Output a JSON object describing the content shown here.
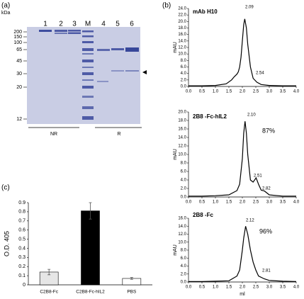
{
  "panel_a": {
    "label": "(a)",
    "unit": "kDa",
    "markers": [
      "200",
      "150",
      "100",
      "65",
      "45",
      "30",
      "20",
      "12"
    ],
    "lanes": [
      "1",
      "2",
      "3",
      "M",
      "4",
      "5",
      "6"
    ],
    "groups": [
      "NR",
      "R"
    ]
  },
  "chart_data": [
    {
      "type": "line",
      "panel": "(b)",
      "title": "mAb H10",
      "ylabel": "mAU",
      "color": "#000000",
      "x": [
        0,
        0.5,
        1.0,
        1.4,
        1.6,
        1.7,
        1.8,
        1.85,
        1.9,
        1.95,
        2.0,
        2.05,
        2.09,
        2.15,
        2.2,
        2.3,
        2.4,
        2.54,
        2.7,
        3.0,
        3.5,
        4.0
      ],
      "values": [
        0.2,
        0.2,
        0.3,
        0.8,
        2,
        3,
        3.8,
        4.5,
        6,
        9,
        14,
        19,
        20.8,
        18,
        13,
        6,
        2.5,
        1.3,
        0.6,
        0.3,
        0.2,
        0.2
      ],
      "xlim": [
        0,
        4
      ],
      "ylim": [
        0,
        24
      ],
      "xticks": [
        {
          "value": 0,
          "label": "0.0"
        },
        {
          "value": 0.5,
          "label": "0.5"
        },
        {
          "value": 1,
          "label": "1.0"
        },
        {
          "value": 1.5,
          "label": "1.5"
        },
        {
          "value": 2,
          "label": "2.0"
        },
        {
          "value": 2.5,
          "label": "2.5"
        },
        {
          "value": 3,
          "label": "3.0"
        },
        {
          "value": 3.5,
          "label": "3.5"
        },
        {
          "value": 4,
          "label": "4.0"
        }
      ],
      "yticks": [
        {
          "value": 0,
          "label": "0.0"
        },
        {
          "value": 2,
          "label": "2.0"
        },
        {
          "value": 4,
          "label": "4.0"
        },
        {
          "value": 6,
          "label": "6.0"
        },
        {
          "value": 8,
          "label": "8.0"
        },
        {
          "value": 10,
          "label": "10.0"
        },
        {
          "value": 12,
          "label": "12.0"
        },
        {
          "value": 14,
          "label": "14.0"
        },
        {
          "value": 16,
          "label": "16.0"
        },
        {
          "value": 18,
          "label": "18.0"
        },
        {
          "value": 20,
          "label": "20.0"
        },
        {
          "value": 22,
          "label": "22.0"
        },
        {
          "value": 24,
          "label": "24.0"
        }
      ],
      "annotations": [
        "2.09",
        "2.54"
      ]
    },
    {
      "type": "line",
      "title": "2B8 -Fc-hIL2",
      "ylabel": "mAU",
      "color": "#000000",
      "x": [
        0,
        0.5,
        1.0,
        1.5,
        1.8,
        1.9,
        2.0,
        2.05,
        2.1,
        2.15,
        2.2,
        2.3,
        2.4,
        2.51,
        2.6,
        2.7,
        2.82,
        3.0,
        3.5,
        4.0
      ],
      "values": [
        0.2,
        0.2,
        0.3,
        0.5,
        1.5,
        3,
        9,
        15,
        17.8,
        15,
        10,
        4,
        3.5,
        4.5,
        3,
        1.6,
        1.4,
        0.5,
        0.2,
        0.2
      ],
      "xlim": [
        0,
        4
      ],
      "ylim": [
        0,
        20
      ],
      "xticks": [
        {
          "value": 0,
          "label": "0.0"
        },
        {
          "value": 0.5,
          "label": "0.5"
        },
        {
          "value": 1,
          "label": "1.0"
        },
        {
          "value": 1.5,
          "label": "1.5"
        },
        {
          "value": 2,
          "label": "2.0"
        },
        {
          "value": 2.5,
          "label": "2.5"
        },
        {
          "value": 3,
          "label": "3.0"
        },
        {
          "value": 3.5,
          "label": "3.5"
        },
        {
          "value": 4,
          "label": "4.0"
        }
      ],
      "yticks": [
        {
          "value": 0,
          "label": "0.0"
        },
        {
          "value": 2,
          "label": "2.0"
        },
        {
          "value": 4,
          "label": "4.0"
        },
        {
          "value": 6,
          "label": "6.0"
        },
        {
          "value": 8,
          "label": "8.0"
        },
        {
          "value": 10,
          "label": "10.0"
        },
        {
          "value": 12,
          "label": "12.0"
        },
        {
          "value": 14,
          "label": "14.0"
        },
        {
          "value": 16,
          "label": "16.0"
        },
        {
          "value": 18,
          "label": "18.0"
        },
        {
          "value": 20,
          "label": "20.0"
        }
      ],
      "annotations": [
        "2.10",
        "87%",
        "2.51",
        "2.82"
      ]
    },
    {
      "type": "line",
      "title": "2B8 -Fc",
      "ylabel": "mAU",
      "xlabel": "ml",
      "color": "#000000",
      "x": [
        0,
        0.5,
        1.0,
        1.5,
        1.8,
        1.9,
        2.0,
        2.05,
        2.12,
        2.2,
        2.3,
        2.4,
        2.5,
        2.6,
        2.81,
        3.0,
        3.5,
        4.0
      ],
      "values": [
        0.1,
        0.1,
        0.2,
        0.3,
        1.5,
        3,
        8,
        11,
        14,
        12,
        8,
        5,
        3,
        1.5,
        0.8,
        0.4,
        0.2,
        0.1
      ],
      "xlim": [
        0,
        4
      ],
      "ylim": [
        0,
        16
      ],
      "xticks": [
        {
          "value": 0,
          "label": "0.0"
        },
        {
          "value": 0.5,
          "label": "0.5"
        },
        {
          "value": 1,
          "label": "1.0"
        },
        {
          "value": 1.5,
          "label": "1.5"
        },
        {
          "value": 2,
          "label": "2.0"
        },
        {
          "value": 2.5,
          "label": "2.5"
        },
        {
          "value": 3,
          "label": "3.0"
        },
        {
          "value": 3.5,
          "label": "3.5"
        },
        {
          "value": 4,
          "label": "4.0"
        }
      ],
      "yticks": [
        {
          "value": 0,
          "label": "0.0"
        },
        {
          "value": 2,
          "label": "2.0"
        },
        {
          "value": 4,
          "label": "4.0"
        },
        {
          "value": 6,
          "label": "6.0"
        },
        {
          "value": 8,
          "label": "8.0"
        },
        {
          "value": 10,
          "label": "10.0"
        },
        {
          "value": 12,
          "label": "12.0"
        },
        {
          "value": 14,
          "label": "14.0"
        },
        {
          "value": 16,
          "label": "16.0"
        }
      ],
      "annotations": [
        "2.12",
        "96%",
        "2.81"
      ]
    },
    {
      "type": "bar",
      "panel": "(c)",
      "ylabel": "O.D. 405",
      "categories": [
        "C2B8-Fc",
        "C2B8-Fc-hIL2",
        "PBS"
      ],
      "values": [
        0.14,
        0.81,
        0.07
      ],
      "errors": [
        0.03,
        0.09,
        0.01
      ],
      "colors": [
        "#e6e6e6",
        "#000000",
        "#ffffff"
      ],
      "ylim": [
        0,
        0.9
      ],
      "yticks": [
        0,
        0.1,
        0.2,
        0.3,
        0.4,
        0.5,
        0.6,
        0.7,
        0.8,
        0.9
      ]
    }
  ]
}
